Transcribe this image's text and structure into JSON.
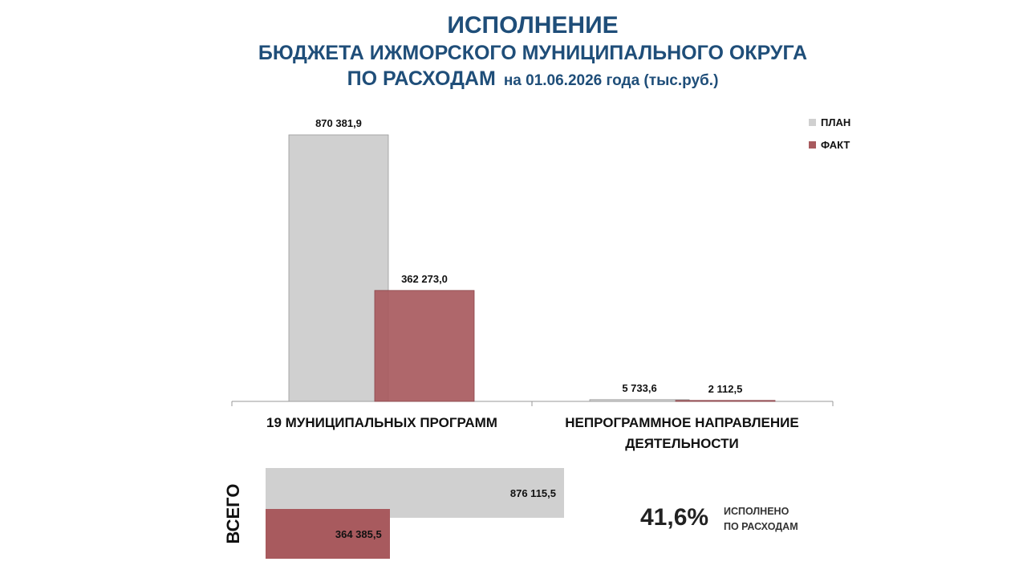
{
  "header": {
    "line1": "ИСПОЛНЕНИЕ",
    "line2": "БЮДЖЕТА ИЖМОРСКОГО МУНИЦИПАЛЬНОГО ОКРУГА",
    "line3_main": "ПО РАСХОДАМ",
    "line3_sub": "на 01.06.2026 года  (тыс.руб.)"
  },
  "chart_data": [
    {
      "type": "bar",
      "categories": [
        "19 МУНИЦИПАЛЬНЫХ  ПРОГРАММ",
        "НЕПРОГРАММНОЕ  НАПРАВЛЕНИЕ ДЕЯТЕЛЬНОСТИ"
      ],
      "series": [
        {
          "name": "ПЛАН",
          "values": [
            870381.9,
            5733.6
          ],
          "labels": [
            "870 381,9",
            "5 733,6"
          ],
          "color": "#D0D0D0"
        },
        {
          "name": "ФАКТ",
          "values": [
            362273.0,
            2112.5
          ],
          "labels": [
            "362 273,0",
            "2 112,5"
          ],
          "color": "#A85A5E"
        }
      ],
      "ylim": [
        0,
        870381.9
      ],
      "legend": "top-right"
    },
    {
      "type": "bar",
      "orientation": "horizontal",
      "categories": [
        "ВСЕГО"
      ],
      "series": [
        {
          "name": "ПЛАН",
          "values": [
            876115.5
          ],
          "labels": [
            "876 115,5"
          ],
          "color": "#D0D0D0"
        },
        {
          "name": "ФАКТ",
          "values": [
            364385.5
          ],
          "labels": [
            "364 385,5"
          ],
          "color": "#A85A5E"
        }
      ]
    }
  ],
  "summary": {
    "percent": "41,6%",
    "caption_line1": "ИСПОЛНЕНО",
    "caption_line2": "ПО РАСХОДАМ"
  }
}
